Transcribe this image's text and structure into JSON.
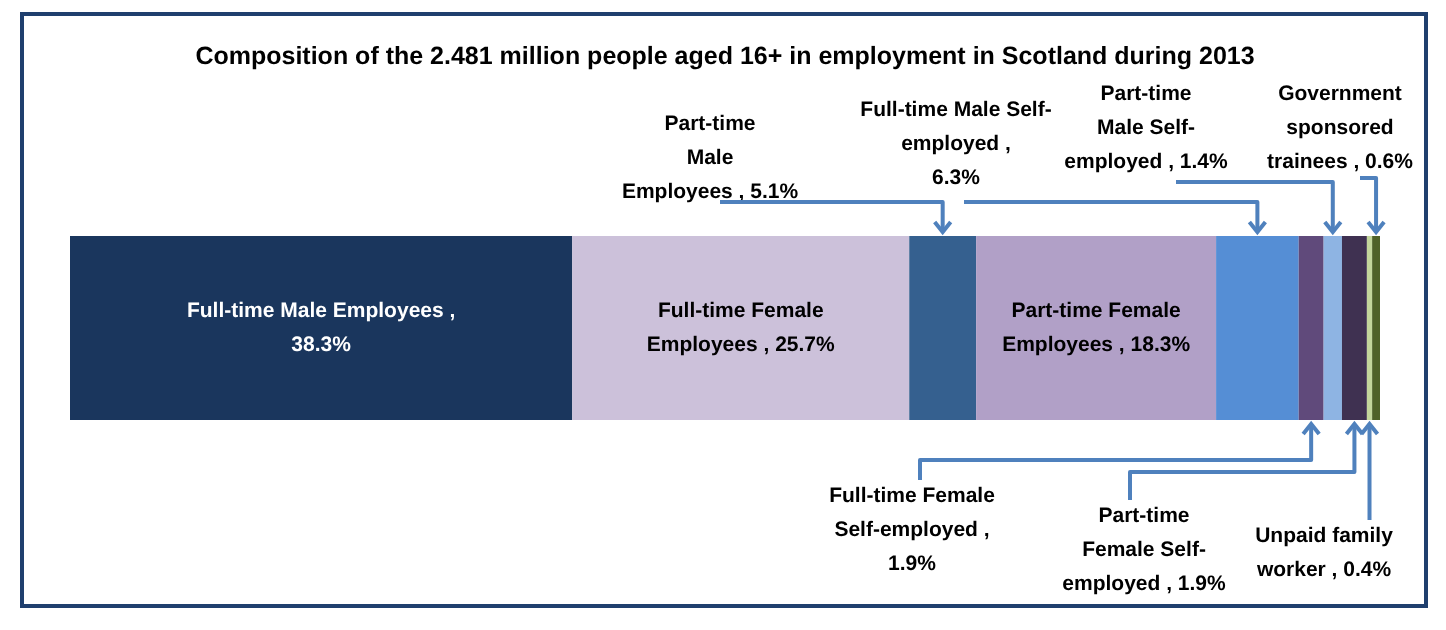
{
  "chart_data": {
    "type": "bar",
    "title": "Composition of the 2.481 million people aged 16+ in employment in Scotland during 2013",
    "orientation": "horizontal",
    "stacked": true,
    "categories": [
      null
    ],
    "series": [
      {
        "color": "#1a365d",
        "values": [
          38.3
        ],
        "value_labels": [
          "Full-time Male Employees , 38.3%"
        ]
      },
      {
        "color": "#ccc1da",
        "values": [
          25.7
        ],
        "value_labels": [
          "Full-time Female Employees , 25.7%"
        ]
      },
      {
        "color": "#35608f",
        "values": [
          5.1
        ],
        "value_labels": [
          "Part-time Male Employees , 5.1%"
        ]
      },
      {
        "color": "#b1a0c7",
        "values": [
          18.3
        ],
        "value_labels": [
          "Part-time Female Employees , 18.3%"
        ]
      },
      {
        "color": "#558ed5",
        "values": [
          6.3
        ],
        "value_labels": [
          "Full-time Male Self-employed , 6.3%"
        ]
      },
      {
        "color": "#604a7b",
        "values": [
          1.9
        ],
        "value_labels": [
          "Full-time Female Self-employed , 1.9%"
        ]
      },
      {
        "color": "#8eb4e3",
        "values": [
          1.4
        ],
        "value_labels": [
          "Part-time Male Self-employed , 1.4%"
        ]
      },
      {
        "color": "#3f3151",
        "values": [
          1.9
        ],
        "value_labels": [
          "Part-time Female Self-employed , 1.9%"
        ]
      },
      {
        "color": "#c3d69b",
        "values": [
          0.4
        ],
        "value_labels": [
          "Unpaid family worker , 0.4%"
        ]
      },
      {
        "color": "#4f6228",
        "values": [
          0.6
        ],
        "value_labels": [
          "Government sponsored trainees , 0.6%"
        ]
      }
    ]
  }
}
